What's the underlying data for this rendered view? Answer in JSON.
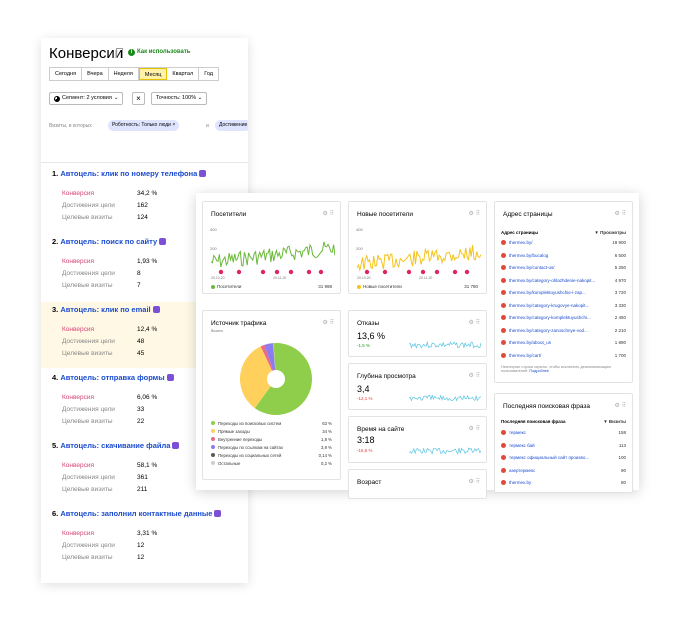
{
  "left_panel": {
    "title": "Конверсии",
    "howto": "Как использовать",
    "tabs": [
      "Сегодня",
      "Вчера",
      "Неделя",
      "Месяц",
      "Квартал",
      "Год"
    ],
    "active_tab": "Месяц",
    "segment": "Сегмент: 2 условия",
    "accuracy": "Точность: 100%",
    "visits_label": "Визиты, в которых",
    "chip1": "Роботность: Только люди",
    "and_label": "и",
    "chip2": "Достижение",
    "row_labels": [
      "Конверсия",
      "Достижения цели",
      "Целевые визиты"
    ],
    "goals": [
      {
        "num": "1.",
        "name": "Автоцель: клик по номеру телефона",
        "conversion": "34,2 %",
        "achievements": "162",
        "visits": "124"
      },
      {
        "num": "2.",
        "name": "Автоцель: поиск по сайту",
        "conversion": "1,93 %",
        "achievements": "8",
        "visits": "7"
      },
      {
        "num": "3.",
        "name": "Автоцель: клик по email",
        "conversion": "12,4 %",
        "achievements": "48",
        "visits": "45"
      },
      {
        "num": "4.",
        "name": "Автоцель: отправка формы",
        "conversion": "6,06 %",
        "achievements": "33",
        "visits": "22"
      },
      {
        "num": "5.",
        "name": "Автоцель: скачивание файла",
        "conversion": "58,1 %",
        "achievements": "361",
        "visits": "211"
      },
      {
        "num": "6.",
        "name": "Автоцель: заполнил контактные данные",
        "conversion": "3,31 %",
        "achievements": "12",
        "visits": "12"
      }
    ]
  },
  "dashboard": {
    "visitors": {
      "title": "Посетители",
      "legend": "Посетители",
      "total": "31 998",
      "ymax": "400",
      "ymid": "200",
      "x0": "20.10.20",
      "x1": "20.11.20"
    },
    "new_visitors": {
      "title": "Новые посетители",
      "legend": "Новые посетители",
      "total": "31 780",
      "ymax": "400",
      "ymid": "200",
      "x0": "20.10.20",
      "x1": "20.11.20"
    },
    "pages": {
      "title": "Адрес страницы",
      "col1": "Адрес страницы",
      "col2": "▼ Просмотры",
      "rows": [
        {
          "url": "thermex.by/",
          "views": "19 900"
        },
        {
          "url": "thermex.by/bucalog",
          "views": "6 500"
        },
        {
          "url": "thermex.by/contact-us/",
          "views": "5 250"
        },
        {
          "url": "thermex.by/category-ohlazhdenie-nakopit...",
          "views": "4 970"
        },
        {
          "url": "thermex.by/komplektuyushchie-i-zap...",
          "views": "3 720"
        },
        {
          "url": "thermex.by/category-krugovye-nakopit...",
          "views": "3 330"
        },
        {
          "url": "thermex.by/category-komplektuyushchi...",
          "views": "2 450"
        },
        {
          "url": "thermex.by/category-zanoschnye-vod...",
          "views": "2 210"
        },
        {
          "url": "thermex.by/about_us",
          "views": "1 890"
        },
        {
          "url": "thermex.by/cart/",
          "views": "1 700"
        }
      ],
      "note": "Некоторые строки скрыты, чтобы исключить деанонимизацию пользователей.",
      "note_link": "Подробнее"
    },
    "traffic": {
      "title": "Источник трафика",
      "subtitle": "Визиты",
      "items": [
        {
          "label": "Переходы из поисковых систем",
          "value": "63 %",
          "color": "#8fce4a"
        },
        {
          "label": "Прямые заходы",
          "value": "34 %",
          "color": "#ffd05c"
        },
        {
          "label": "Внутренние переходы",
          "value": "1,8 %",
          "color": "#e96a85"
        },
        {
          "label": "Переходы по ссылкам на сайтах",
          "value": "3,9 %",
          "color": "#8d7cf0"
        },
        {
          "label": "Переходы из социальных сетей",
          "value": "0,14 %",
          "color": "#5b5b5b"
        },
        {
          "label": "Остальные",
          "value": "0,2 %",
          "color": "#cfcfcf"
        }
      ],
      "pie": [
        63,
        34,
        1.8,
        3.9,
        0.14,
        0.2
      ]
    },
    "bounce": {
      "title": "Отказы",
      "value": "13,6 %",
      "delta": "-1,5 %",
      "delta_color": "#1a9c1a"
    },
    "depth": {
      "title": "Глубина просмотра",
      "value": "3,4",
      "delta": "-12,1 %",
      "delta_color": "#e23a3a"
    },
    "time": {
      "title": "Время на сайте",
      "value": "3:18",
      "delta": "-16,5 %",
      "delta_color": "#e23a3a"
    },
    "age": {
      "title": "Возраст"
    },
    "search": {
      "title": "Последняя поисковая фраза",
      "col1": "Последняя поисковая фраза",
      "col2": "▼ Визиты",
      "rows": [
        {
          "phrase": "термекс",
          "visits": "158"
        },
        {
          "phrase": "термекс бай",
          "visits": "113"
        },
        {
          "phrase": "термекс официальный сайт произво...",
          "visits": "100"
        },
        {
          "phrase": "азертермекс",
          "visits": "90"
        },
        {
          "phrase": "thermex.by",
          "visits": "80"
        }
      ]
    }
  },
  "colors": {
    "link": "#1b4ccf",
    "conversion": "#d6447a",
    "green_line": "#6ab93a",
    "yellow_line": "#f5c31a",
    "spark": "#5bc4e0"
  }
}
